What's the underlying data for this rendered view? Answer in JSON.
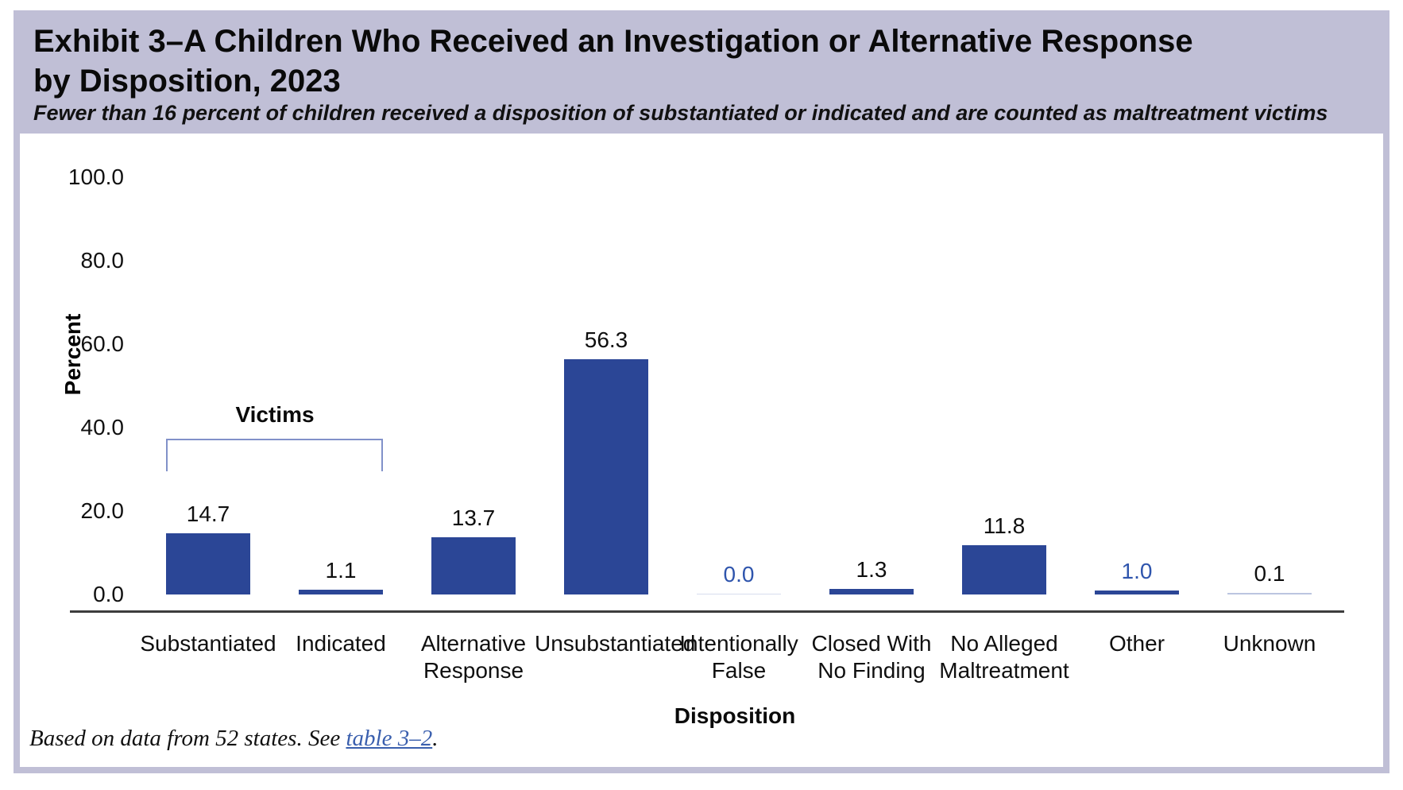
{
  "header": {
    "title_line1": "Exhibit 3–A Children Who Received an Investigation or Alternative Response",
    "title_line2": "by Disposition, 2023",
    "subtitle": "Fewer than 16 percent of children received a disposition of substantiated or indicated and are counted as maltreatment victims"
  },
  "chart_data": {
    "type": "bar",
    "xlabel": "Disposition",
    "ylabel": "Percent",
    "ylim": [
      0,
      100
    ],
    "yticks": [
      100.0,
      80.0,
      60.0,
      40.0,
      20.0,
      0.0
    ],
    "categories": [
      "Substantiated",
      "Indicated",
      "Alternative\nResponse",
      "Unsubstantiated",
      "Intentionally\nFalse",
      "Closed With\nNo Finding",
      "No Alleged\nMaltreatment",
      "Other",
      "Unknown"
    ],
    "values": [
      14.7,
      1.1,
      13.7,
      56.3,
      0.0,
      1.3,
      11.8,
      1.0,
      0.1
    ],
    "value_label_styles": [
      "black",
      "black",
      "black",
      "black",
      "blue",
      "black",
      "black",
      "blue",
      "black"
    ],
    "annotation": {
      "label": "Victims",
      "spans_categories": [
        "Substantiated",
        "Indicated"
      ]
    },
    "grid": false,
    "legend": false
  },
  "footnote": {
    "prefix": "Based on data from 52 states. See ",
    "link": "table 3–2",
    "suffix": "."
  },
  "colors": {
    "header_bg": "#c0bfd6",
    "bar": "#2b4696",
    "value_blue": "#2f55ad",
    "hairline": "#bcc5e0",
    "bracket": "#8191c9",
    "axis": "#3d3d3d"
  }
}
